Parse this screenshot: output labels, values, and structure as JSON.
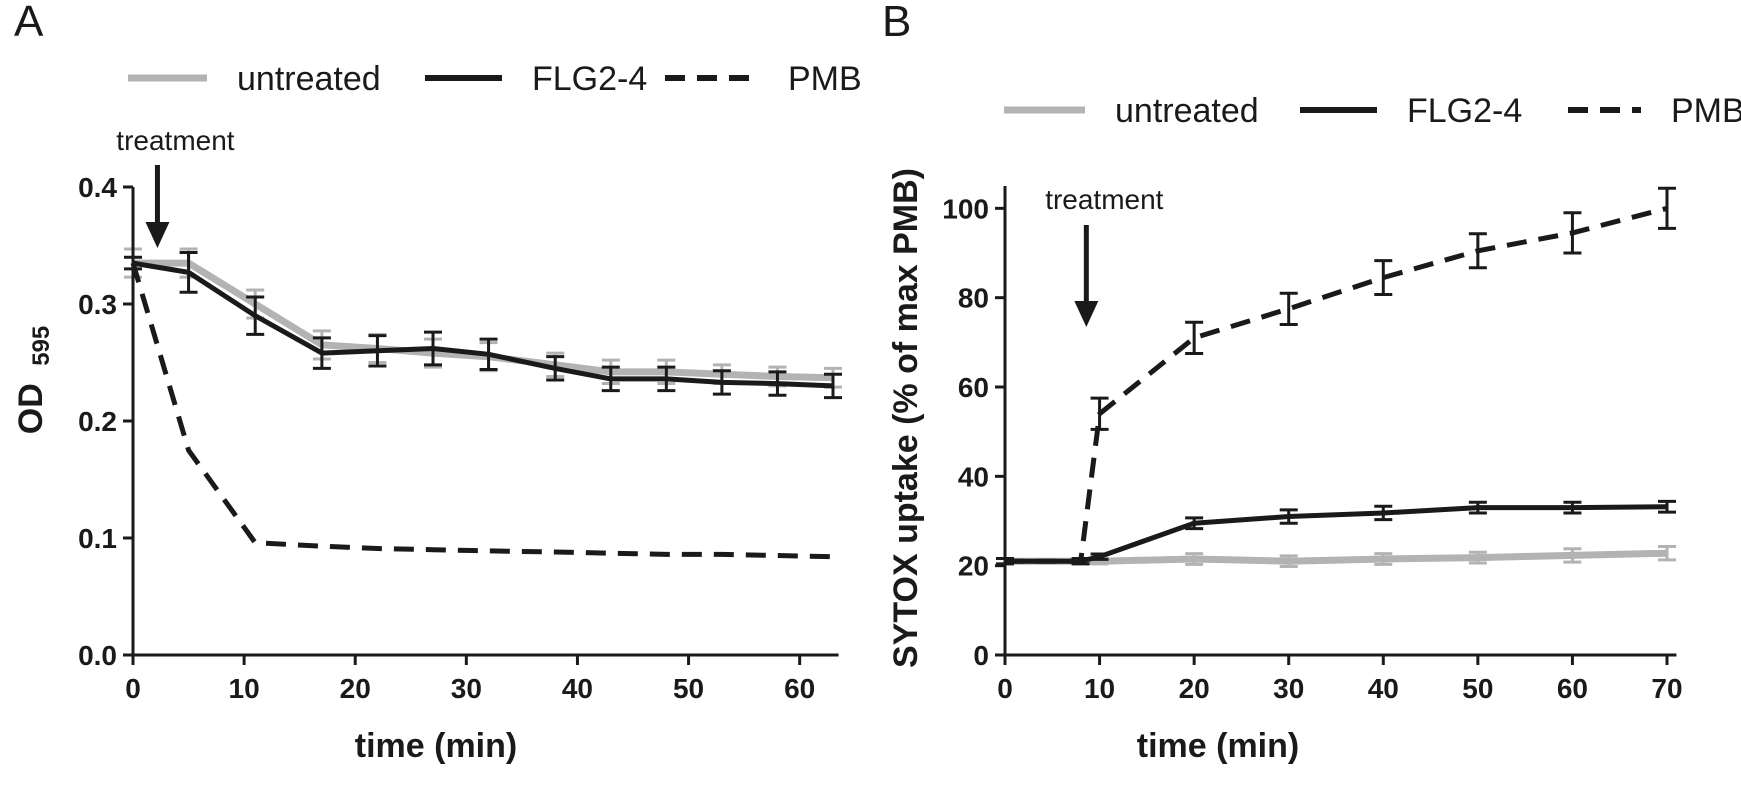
{
  "chart_data": [
    {
      "panel_label": "A",
      "type": "line",
      "xlabel": "time (min)",
      "ylabel_main": "OD",
      "ylabel_sub": "595",
      "xlim": [
        0,
        63
      ],
      "ylim": [
        0,
        0.4
      ],
      "x_ticks": [
        0,
        10,
        20,
        30,
        40,
        50,
        60
      ],
      "x_tick_labels": [
        "0",
        "10",
        "20",
        "30",
        "40",
        "50",
        "60"
      ],
      "y_ticks": [
        0,
        0.1,
        0.2,
        0.3,
        0.4
      ],
      "y_tick_labels": [
        "0.0",
        "0.1",
        "0.2",
        "0.3",
        "0.4"
      ],
      "legend": [
        "untreated",
        "FLG2-4",
        "PMB"
      ],
      "annotation": {
        "text": "treatment",
        "x": 2.2
      },
      "series": [
        {
          "name": "untreated",
          "color": "#b3b3b3",
          "dash": "solid",
          "x": [
            0,
            5,
            11,
            17,
            22,
            27,
            32,
            38,
            43,
            48,
            53,
            58,
            63
          ],
          "y": [
            0.335,
            0.335,
            0.3,
            0.265,
            0.262,
            0.258,
            0.255,
            0.248,
            0.242,
            0.242,
            0.24,
            0.238,
            0.237
          ],
          "err": [
            0.012,
            0.012,
            0.012,
            0.012,
            0.012,
            0.012,
            0.012,
            0.01,
            0.01,
            0.01,
            0.008,
            0.008,
            0.008
          ]
        },
        {
          "name": "FLG2-4",
          "color": "#1a1a1a",
          "dash": "solid",
          "x": [
            0,
            5,
            11,
            17,
            22,
            27,
            32,
            38,
            43,
            48,
            53,
            58,
            63
          ],
          "y": [
            0.335,
            0.327,
            0.29,
            0.258,
            0.26,
            0.262,
            0.257,
            0.245,
            0.236,
            0.236,
            0.233,
            0.232,
            0.23
          ],
          "err": [
            0.005,
            0.017,
            0.016,
            0.013,
            0.013,
            0.014,
            0.013,
            0.01,
            0.01,
            0.01,
            0.01,
            0.01,
            0.01
          ]
        },
        {
          "name": "PMB",
          "color": "#1a1a1a",
          "dash": "dashed",
          "x": [
            0,
            5,
            11,
            17,
            22,
            27,
            32,
            38,
            43,
            48,
            53,
            58,
            63
          ],
          "y": [
            0.335,
            0.175,
            0.096,
            0.093,
            0.091,
            0.09,
            0.089,
            0.088,
            0.087,
            0.086,
            0.086,
            0.085,
            0.084
          ],
          "err": []
        }
      ]
    },
    {
      "panel_label": "B",
      "type": "line",
      "xlabel": "time (min)",
      "ylabel": "SYTOX uptake (% of max PMB)",
      "xlim": [
        0,
        70
      ],
      "ylim": [
        0,
        105
      ],
      "x_ticks": [
        0,
        10,
        20,
        30,
        40,
        50,
        60,
        70
      ],
      "x_tick_labels": [
        "0",
        "10",
        "20",
        "30",
        "40",
        "50",
        "60",
        "70"
      ],
      "y_ticks": [
        0,
        20,
        40,
        60,
        80,
        100
      ],
      "y_tick_labels": [
        "0",
        "20",
        "40",
        "60",
        "80",
        "100"
      ],
      "legend": [
        "untreated",
        "FLG2-4",
        "PMB"
      ],
      "annotation": {
        "text": "treatment",
        "x": 8.6
      },
      "series": [
        {
          "name": "untreated",
          "color": "#b3b3b3",
          "dash": "solid",
          "x": [
            0,
            8,
            10,
            20,
            30,
            40,
            50,
            60,
            70
          ],
          "y": [
            21,
            21,
            21,
            21.5,
            21,
            21.5,
            21.8,
            22.3,
            22.8
          ],
          "err": [
            0.6,
            0.6,
            0.6,
            1.2,
            1.2,
            1.2,
            1.2,
            1.5,
            1.5
          ]
        },
        {
          "name": "FLG2-4",
          "color": "#1a1a1a",
          "dash": "solid",
          "x": [
            0,
            8,
            10,
            20,
            30,
            40,
            50,
            60,
            70
          ],
          "y": [
            21,
            21,
            22,
            29.5,
            31,
            31.8,
            33,
            33,
            33.2
          ],
          "err": [
            0.6,
            0.6,
            0.6,
            1.2,
            1.5,
            1.5,
            1.2,
            1.2,
            1.2
          ]
        },
        {
          "name": "PMB",
          "color": "#1a1a1a",
          "dash": "dashed",
          "x": [
            0,
            8,
            10,
            20,
            30,
            40,
            50,
            60,
            70
          ],
          "y": [
            21,
            21,
            54,
            71,
            77.5,
            84.5,
            90.5,
            94.5,
            100
          ],
          "err": [
            0,
            0,
            3.5,
            3.5,
            3.5,
            3.8,
            3.8,
            4.5,
            4.5
          ]
        }
      ]
    }
  ]
}
